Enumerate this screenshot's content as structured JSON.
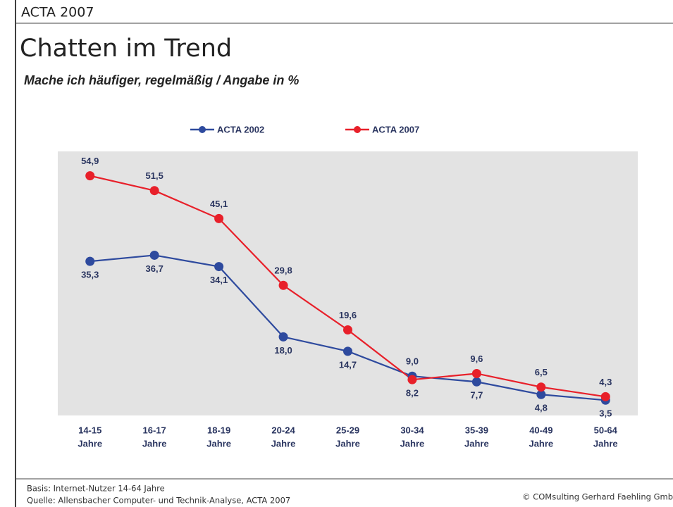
{
  "chart_data": {
    "type": "line",
    "header": "ACTA 2007",
    "title": "Chatten im Trend",
    "subtitle": "Mache ich häufiger, regelmäßig / Angabe in %",
    "categories": [
      [
        "14-15",
        "Jahre"
      ],
      [
        "16-17",
        "Jahre"
      ],
      [
        "18-19",
        "Jahre"
      ],
      [
        "20-24",
        "Jahre"
      ],
      [
        "25-29",
        "Jahre"
      ],
      [
        "30-34",
        "Jahre"
      ],
      [
        "35-39",
        "Jahre"
      ],
      [
        "40-49",
        "Jahre"
      ],
      [
        "50-64",
        "Jahre"
      ]
    ],
    "series": [
      {
        "name": "ACTA 2002",
        "color": "#2e4a9e",
        "values": [
          35.3,
          36.7,
          34.1,
          18.0,
          14.7,
          9.0,
          7.7,
          4.8,
          3.5
        ],
        "value_labels": [
          "35,3",
          "36,7",
          "34,1",
          "18,0",
          "14,7",
          "9,0",
          "7,7",
          "4,8",
          "3,5"
        ]
      },
      {
        "name": "ACTA 2007",
        "color": "#e8202a",
        "values": [
          54.9,
          51.5,
          45.1,
          29.8,
          19.6,
          8.2,
          9.6,
          6.5,
          4.3
        ],
        "value_labels": [
          "54,9",
          "51,5",
          "45,1",
          "29,8",
          "19,6",
          "8,2",
          "9,6",
          "6,5",
          "4,3"
        ]
      }
    ],
    "ylim": [
      0,
      60
    ],
    "yticks": [
      {
        "value": 0,
        "label": "0,0"
      },
      {
        "value": 10,
        "label": "10,0"
      },
      {
        "value": 20,
        "label": "20,0"
      },
      {
        "value": 30,
        "label": "30,0"
      },
      {
        "value": 40,
        "label": "40,0"
      },
      {
        "value": 50,
        "label": "50,0"
      },
      {
        "value": 60,
        "label": "60,0"
      }
    ],
    "legend": "top",
    "notes": [
      "Basis: Internet-Nutzer 14-64 Jahre",
      "Quelle: Allensbacher Computer- und Technik-Analyse, ACTA 2007"
    ],
    "copyright": "© COMsulting Gerhard Faehling Gmb"
  }
}
